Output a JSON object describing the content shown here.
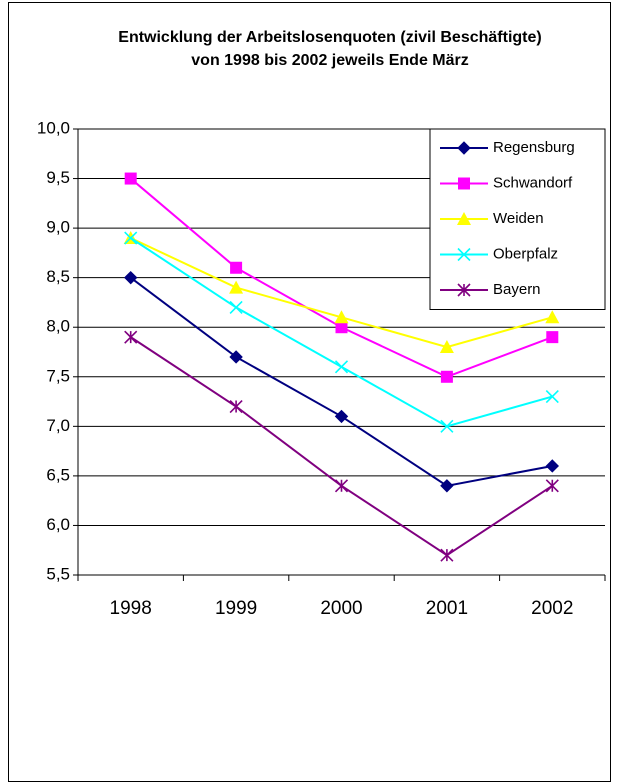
{
  "chart_data": {
    "type": "line",
    "title": "Entwicklung der Arbeitslosenquoten (zivil Beschäftigte) von 1998 bis 2002  jeweils Ende März",
    "categories": [
      "1998",
      "1999",
      "2000",
      "2001",
      "2002"
    ],
    "series": [
      {
        "name": "Regensburg",
        "color": "#000080",
        "marker": "diamond",
        "values": [
          8.5,
          7.7,
          7.1,
          6.4,
          6.6
        ]
      },
      {
        "name": "Schwandorf",
        "color": "#ff00ff",
        "marker": "square",
        "values": [
          9.5,
          8.6,
          8.0,
          7.5,
          7.9
        ]
      },
      {
        "name": "Weiden",
        "color": "#ffff00",
        "marker": "triangle",
        "values": [
          8.9,
          8.4,
          8.1,
          7.8,
          8.1
        ]
      },
      {
        "name": "Oberpfalz",
        "color": "#00ffff",
        "marker": "x",
        "values": [
          8.9,
          8.2,
          7.6,
          7.0,
          7.3
        ]
      },
      {
        "name": "Bayern",
        "color": "#800080",
        "marker": "asterisk",
        "values": [
          7.9,
          7.2,
          6.4,
          5.7,
          6.4
        ]
      }
    ],
    "ylim": [
      5.5,
      10.0
    ],
    "yticks": [
      {
        "value": 5.5,
        "label": "5,5"
      },
      {
        "value": 6.0,
        "label": "6,0"
      },
      {
        "value": 6.5,
        "label": "6,5"
      },
      {
        "value": 7.0,
        "label": "7,0"
      },
      {
        "value": 7.5,
        "label": "7,5"
      },
      {
        "value": 8.0,
        "label": "8,0"
      },
      {
        "value": 8.5,
        "label": "8,5"
      },
      {
        "value": 9.0,
        "label": "9,0"
      },
      {
        "value": 9.5,
        "label": "9,5"
      },
      {
        "value": 10.0,
        "label": "10,0"
      }
    ],
    "grid": true,
    "legend": "top-right"
  }
}
